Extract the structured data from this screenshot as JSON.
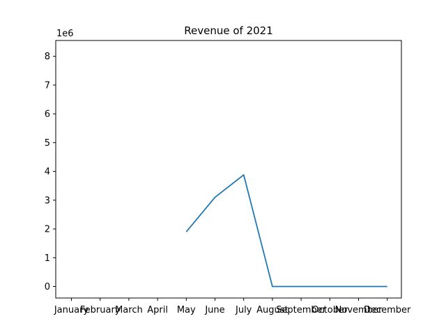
{
  "chart_data": {
    "type": "line",
    "title": "Revenue of 2021",
    "xlabel": "",
    "ylabel": "",
    "y_multiplier_label": "1e6",
    "categories": [
      "January",
      "February",
      "March",
      "April",
      "May",
      "June",
      "July",
      "August",
      "September",
      "October",
      "November",
      "December"
    ],
    "series": [
      {
        "color": "#1f77b4",
        "values": [
          null,
          null,
          null,
          null,
          1900000,
          3100000,
          3880000,
          0,
          0,
          0,
          0,
          0
        ]
      }
    ],
    "ylim": [
      -400000,
      8550000
    ],
    "yticks": [
      0,
      1,
      2,
      3,
      4,
      5,
      6,
      7,
      8
    ],
    "ytick_scale": 1000000,
    "grid": false
  }
}
